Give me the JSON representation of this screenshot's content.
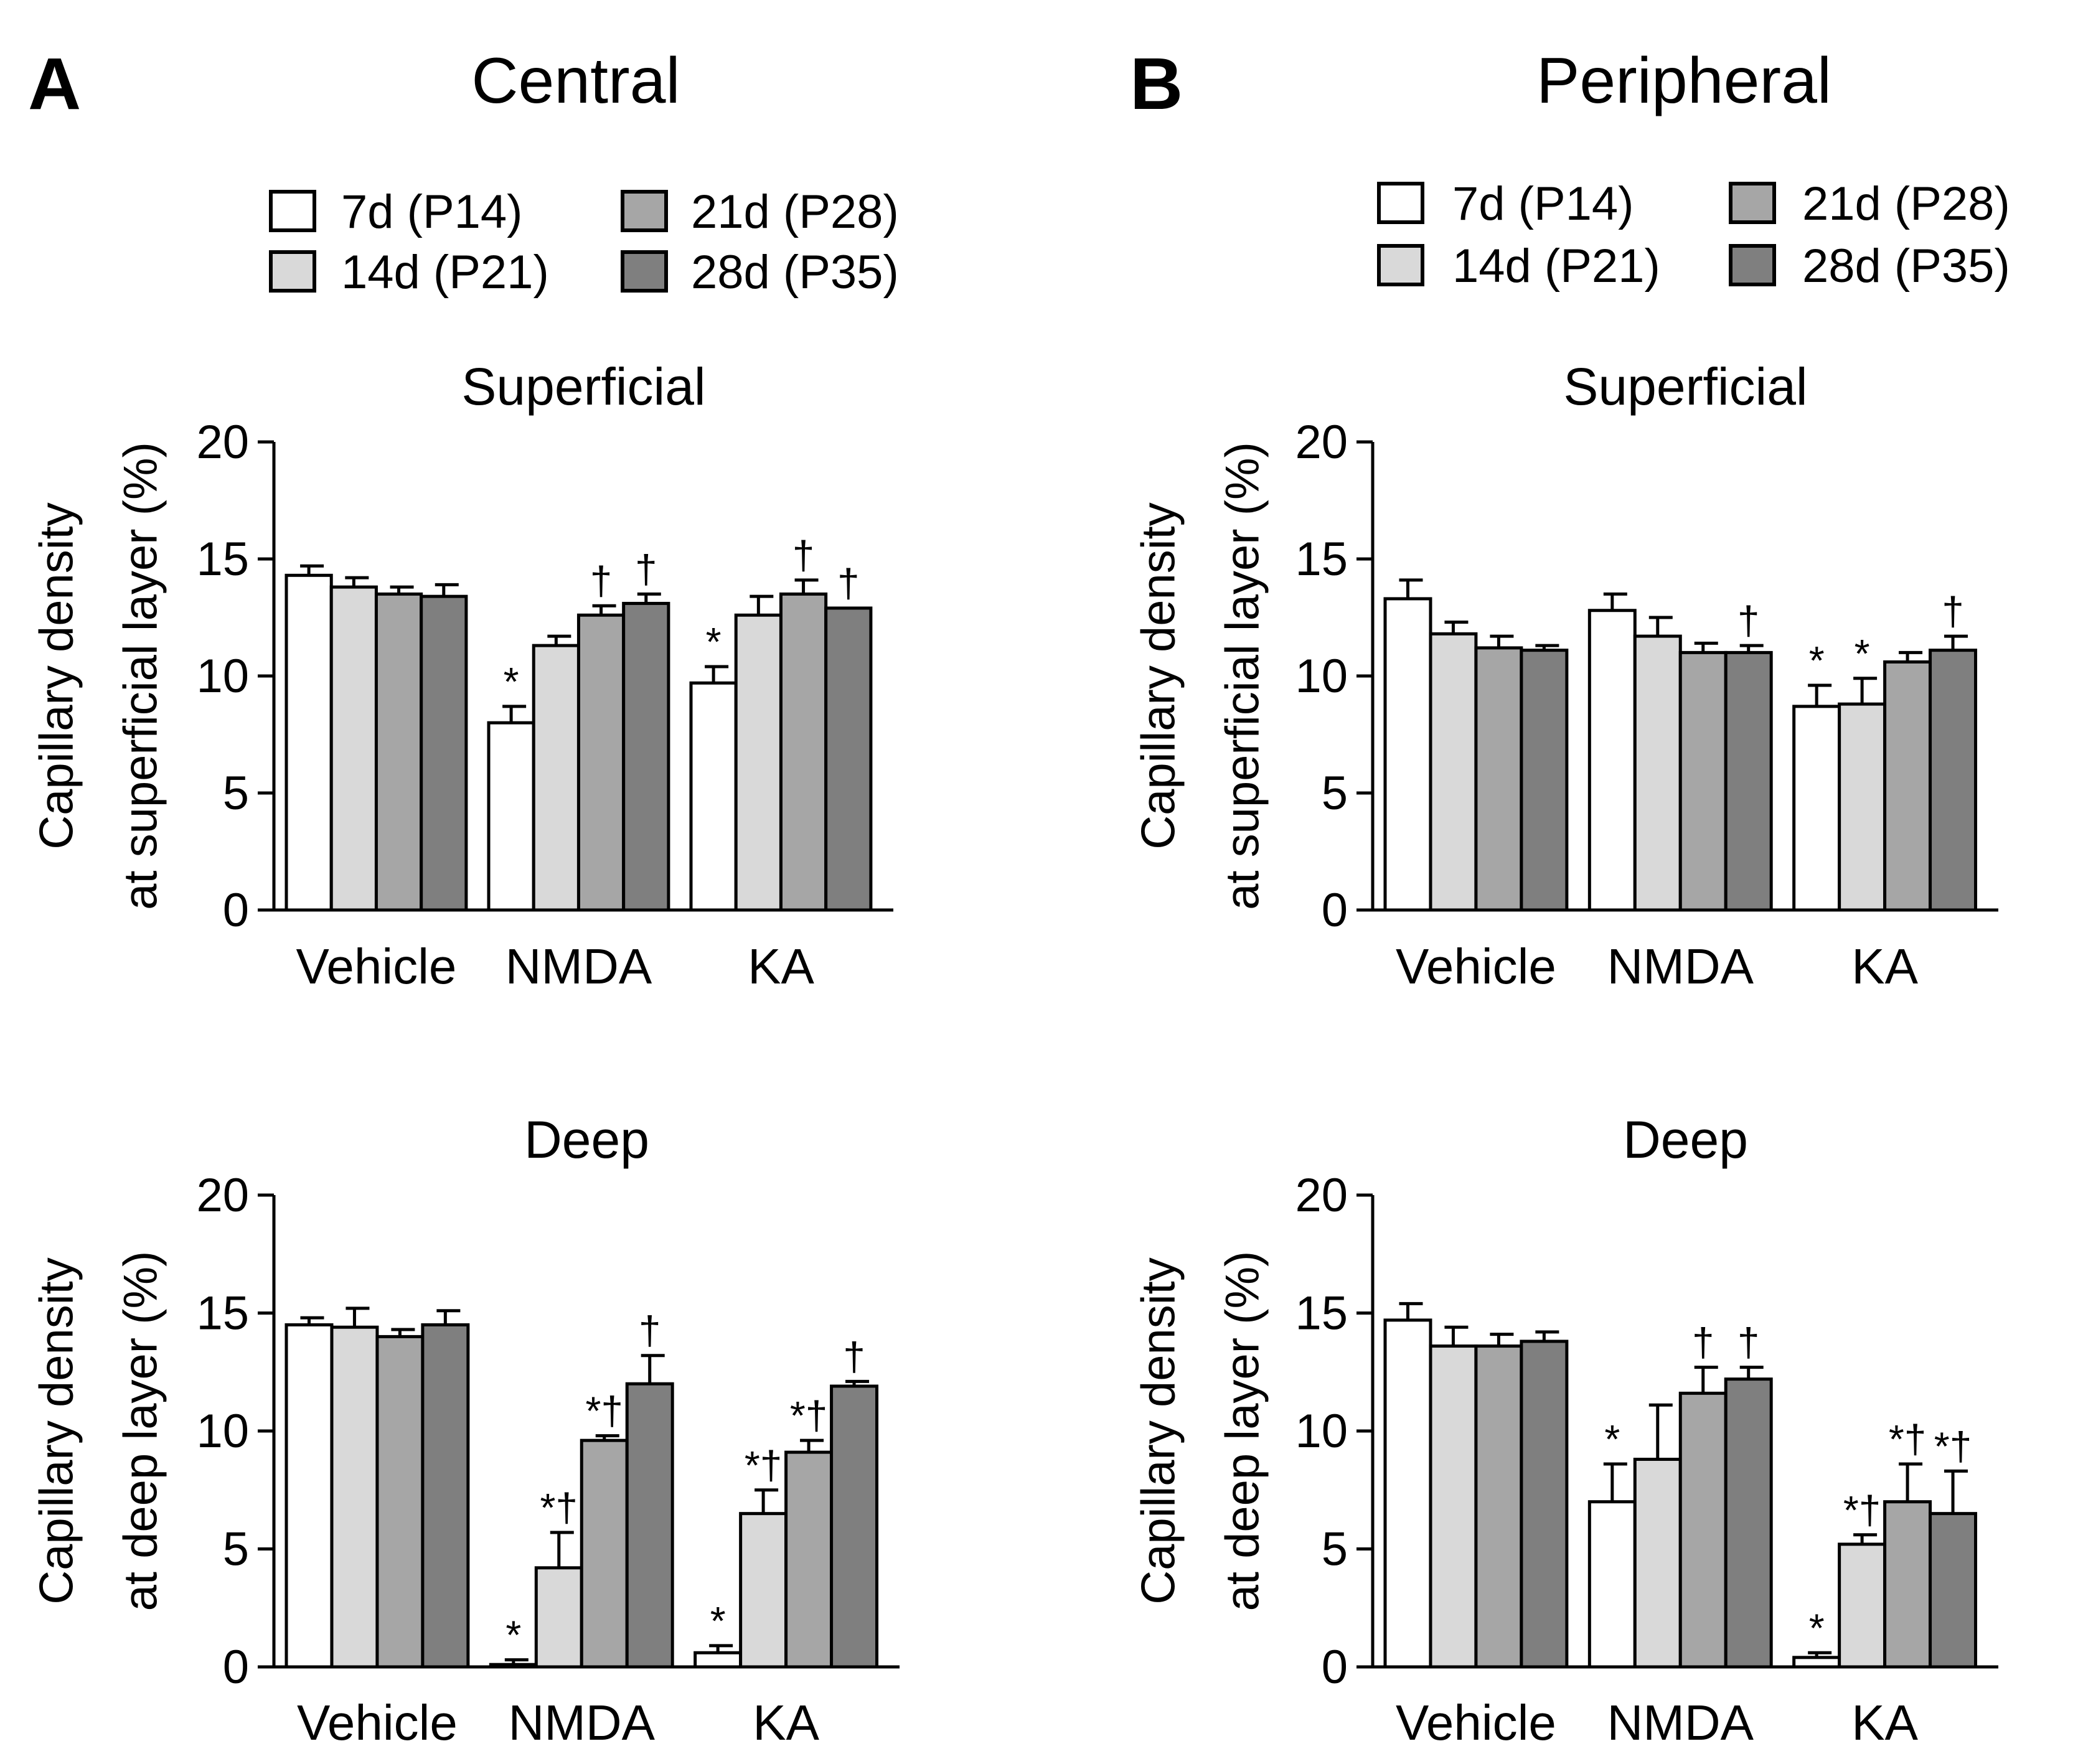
{
  "figure": {
    "panels": [
      {
        "letter": "A",
        "title": "Central"
      },
      {
        "letter": "B",
        "title": "Peripheral"
      }
    ]
  },
  "legend": [
    {
      "label": "7d (P14)",
      "color": "#ffffff"
    },
    {
      "label": "14d (P21)",
      "color": "#d9d9d9"
    },
    {
      "label": "21d (P28)",
      "color": "#a6a6a6"
    },
    {
      "label": "28d (P35)",
      "color": "#7f7f7f"
    }
  ],
  "chart_data": [
    {
      "type": "bar",
      "id": "central-superficial",
      "panel": "A",
      "title": "Superficial",
      "ylabel": [
        "Capillary density",
        "at superficial layer (%)"
      ],
      "ylim": [
        0,
        20
      ],
      "yticks": [
        0,
        5,
        10,
        15,
        20
      ],
      "categories": [
        "Vehicle",
        "NMDA",
        "KA"
      ],
      "series": [
        {
          "name": "7d (P14)",
          "values": [
            14.3,
            8.0,
            9.7
          ],
          "errors": [
            0.4,
            0.7,
            0.7
          ],
          "annotations": [
            "",
            "*",
            "*"
          ]
        },
        {
          "name": "14d (P21)",
          "values": [
            13.8,
            11.3,
            12.6
          ],
          "errors": [
            0.4,
            0.4,
            0.8
          ],
          "annotations": [
            "",
            "",
            ""
          ]
        },
        {
          "name": "21d (P28)",
          "values": [
            13.5,
            12.6,
            13.5
          ],
          "errors": [
            0.3,
            0.4,
            0.6
          ],
          "annotations": [
            "",
            "†",
            "†"
          ]
        },
        {
          "name": "28d (P35)",
          "values": [
            13.4,
            13.1,
            12.9
          ],
          "errors": [
            0.5,
            0.4,
            0.0
          ],
          "annotations": [
            "",
            "†",
            "†"
          ]
        }
      ]
    },
    {
      "type": "bar",
      "id": "central-deep",
      "panel": "A",
      "title": "Deep",
      "ylabel": [
        "Capillary density",
        "at deep layer (%)"
      ],
      "ylim": [
        0,
        20
      ],
      "yticks": [
        0,
        5,
        10,
        15,
        20
      ],
      "categories": [
        "Vehicle",
        "NMDA",
        "KA"
      ],
      "series": [
        {
          "name": "7d (P14)",
          "values": [
            14.5,
            0.1,
            0.6
          ],
          "errors": [
            0.3,
            0.2,
            0.3
          ],
          "annotations": [
            "",
            "*",
            "*"
          ]
        },
        {
          "name": "14d (P21)",
          "values": [
            14.4,
            4.2,
            6.5
          ],
          "errors": [
            0.8,
            1.5,
            1.0
          ],
          "annotations": [
            "",
            "*†",
            "*†"
          ]
        },
        {
          "name": "21d (P28)",
          "values": [
            14.0,
            9.6,
            9.1
          ],
          "errors": [
            0.3,
            0.2,
            0.5
          ],
          "annotations": [
            "",
            "*†",
            "*†"
          ]
        },
        {
          "name": "28d (P35)",
          "values": [
            14.5,
            12.0,
            11.9
          ],
          "errors": [
            0.6,
            1.2,
            0.2
          ],
          "annotations": [
            "",
            "†",
            "†"
          ]
        }
      ]
    },
    {
      "type": "bar",
      "id": "peripheral-superficial",
      "panel": "B",
      "title": "Superficial",
      "ylabel": [
        "Capillary density",
        "at superficial layer (%)"
      ],
      "ylim": [
        0,
        20
      ],
      "yticks": [
        0,
        5,
        10,
        15,
        20
      ],
      "categories": [
        "Vehicle",
        "NMDA",
        "KA"
      ],
      "series": [
        {
          "name": "7d (P14)",
          "values": [
            13.3,
            12.8,
            8.7
          ],
          "errors": [
            0.8,
            0.7,
            0.9
          ],
          "annotations": [
            "",
            "",
            "*"
          ]
        },
        {
          "name": "14d (P21)",
          "values": [
            11.8,
            11.7,
            8.8
          ],
          "errors": [
            0.5,
            0.8,
            1.1
          ],
          "annotations": [
            "",
            "",
            "*"
          ]
        },
        {
          "name": "21d (P28)",
          "values": [
            11.2,
            11.0,
            10.6
          ],
          "errors": [
            0.5,
            0.4,
            0.4
          ],
          "annotations": [
            "",
            "",
            ""
          ]
        },
        {
          "name": "28d (P35)",
          "values": [
            11.1,
            11.0,
            11.1
          ],
          "errors": [
            0.2,
            0.3,
            0.6
          ],
          "annotations": [
            "",
            "†",
            "†"
          ]
        }
      ]
    },
    {
      "type": "bar",
      "id": "peripheral-deep",
      "panel": "B",
      "title": "Deep",
      "ylabel": [
        "Capillary density",
        "at deep layer (%)"
      ],
      "ylim": [
        0,
        20
      ],
      "yticks": [
        0,
        5,
        10,
        15,
        20
      ],
      "categories": [
        "Vehicle",
        "NMDA",
        "KA"
      ],
      "series": [
        {
          "name": "7d (P14)",
          "values": [
            14.7,
            7.0,
            0.4
          ],
          "errors": [
            0.7,
            1.6,
            0.2
          ],
          "annotations": [
            "",
            "*",
            "*"
          ]
        },
        {
          "name": "14d (P21)",
          "values": [
            13.6,
            8.8,
            5.2
          ],
          "errors": [
            0.8,
            2.3,
            0.4
          ],
          "annotations": [
            "",
            "",
            "*†"
          ]
        },
        {
          "name": "21d (P28)",
          "values": [
            13.6,
            11.6,
            7.0
          ],
          "errors": [
            0.5,
            1.1,
            1.6
          ],
          "annotations": [
            "",
            "†",
            "*†"
          ]
        },
        {
          "name": "28d (P35)",
          "values": [
            13.8,
            12.2,
            6.5
          ],
          "errors": [
            0.4,
            0.5,
            1.8
          ],
          "annotations": [
            "",
            "†",
            "*†"
          ]
        }
      ]
    }
  ]
}
